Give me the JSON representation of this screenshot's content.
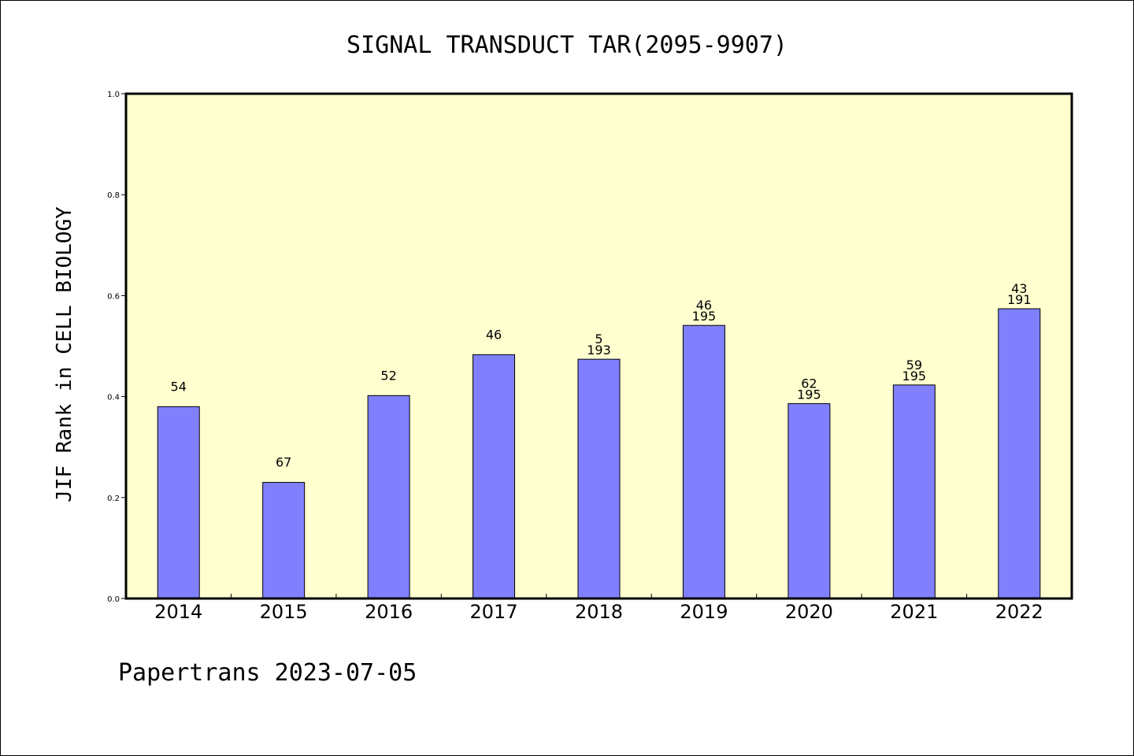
{
  "chart_data": {
    "type": "bar",
    "title": "SIGNAL TRANSDUCT TAR(2095-9907)",
    "ylabel": "JIF Rank in CELL BIOLOGY",
    "xlabel": "",
    "ylim": [
      0,
      1.0
    ],
    "yticks": [
      "0.0",
      "0.2",
      "0.4",
      "0.6",
      "0.8",
      "1.0"
    ],
    "categories": [
      "2014",
      "2015",
      "2016",
      "2017",
      "2018",
      "2019",
      "2020",
      "2021",
      "2022"
    ],
    "values": [
      0.38,
      0.23,
      0.402,
      0.483,
      0.474,
      0.541,
      0.386,
      0.423,
      0.574
    ],
    "labels": [
      [
        "54"
      ],
      [
        "67"
      ],
      [
        "52"
      ],
      [
        "46"
      ],
      [
        "5",
        "193"
      ],
      [
        "46",
        "195"
      ],
      [
        "62",
        "195"
      ],
      [
        "59",
        "195"
      ],
      [
        "43",
        "191"
      ]
    ],
    "colors": {
      "plot_bg": "#ffffd0",
      "bar": "#8080ff",
      "bar_edge": "#000000"
    },
    "grid": false,
    "legend": "none"
  },
  "footer": "Papertrans 2023-07-05"
}
